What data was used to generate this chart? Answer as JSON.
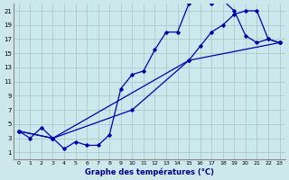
{
  "title": "Graphe des températures (°C)",
  "bg_color": "#cce8ec",
  "grid_color": "#aacccc",
  "line_color": "#0000aa",
  "xlim": [
    -0.5,
    23.5
  ],
  "ylim": [
    0,
    22
  ],
  "xticks": [
    0,
    1,
    2,
    3,
    4,
    5,
    6,
    7,
    8,
    9,
    10,
    11,
    12,
    13,
    14,
    15,
    16,
    17,
    18,
    19,
    20,
    21,
    22,
    23
  ],
  "yticks": [
    1,
    3,
    5,
    7,
    9,
    11,
    13,
    15,
    17,
    19,
    21
  ],
  "series1_x": [
    0,
    1,
    2,
    3,
    4,
    5,
    6,
    7,
    8,
    9,
    10,
    11,
    12,
    13,
    14,
    15,
    16,
    17,
    18,
    19,
    20,
    21,
    22,
    23
  ],
  "series1_y": [
    4,
    3,
    4.5,
    3,
    1.5,
    2.5,
    2,
    2,
    3.5,
    10,
    12,
    12.5,
    15.5,
    18,
    18,
    22,
    22.5,
    22,
    22.5,
    21,
    17.5,
    16.5,
    17,
    16.5
  ],
  "series2_x": [
    0,
    3,
    10,
    15,
    16,
    17,
    18,
    19,
    20,
    21,
    22,
    23
  ],
  "series2_y": [
    4,
    3,
    7,
    14,
    16,
    18,
    19,
    20.5,
    21,
    21,
    17,
    16.5
  ],
  "series3_x": [
    0,
    3,
    15,
    23
  ],
  "series3_y": [
    4,
    3,
    14,
    16.5
  ]
}
